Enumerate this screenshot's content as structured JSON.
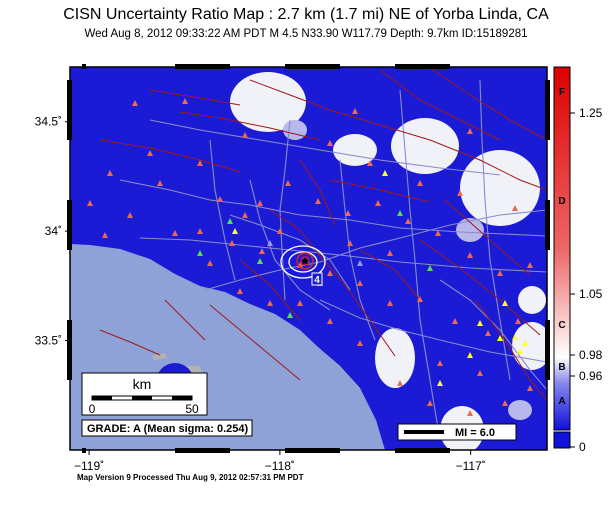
{
  "header": {
    "title": "CISN Uncertainty Ratio Map : 2.7 km (1.7 mi) NE of Yorba Linda, CA",
    "subtitle": "Wed Aug  8, 2012 09:33:22 AM PDT    M 4.5    N33.90 W117.79    Depth: 9.7km    ID:15189281"
  },
  "footer": {
    "text": "Map Version 9 Processed Thu Aug  9, 2012 02:57:31 PM PDT"
  },
  "map": {
    "extent": {
      "lon_min": -119.1,
      "lon_max": -116.6,
      "lat_min": 33.0,
      "lat_max": 34.75
    },
    "lon_ticks": [
      {
        "lon": -119,
        "label": "−119˚"
      },
      {
        "lon": -118,
        "label": "−118˚"
      },
      {
        "lon": -117,
        "label": "−117˚"
      }
    ],
    "lat_ticks": [
      {
        "lat": 34.5,
        "label": "34.5˚"
      },
      {
        "lat": 34.0,
        "label": "34˚"
      },
      {
        "lat": 33.5,
        "label": "33.5˚"
      }
    ],
    "epicenter": {
      "lat": 33.9,
      "lon": -117.79
    },
    "contour_label": "4",
    "scale_bar": {
      "unit": "km",
      "labels": [
        "0",
        "50"
      ]
    },
    "grade_box": "GRADE: A (Mean sigma: 0.254)",
    "mi_legend": "MI = 6.0",
    "colors": {
      "ocean": "#8ea2d8",
      "land": "#b3b3b3",
      "uncertainty_blue": "#1b1bd6",
      "fault": "#a01818",
      "road": "#8a8acc",
      "station": "#e96a55"
    }
  },
  "colorbar": {
    "letters": [
      "F",
      "D",
      "C",
      "B",
      "A"
    ],
    "tick_labels": [
      "1.25",
      "1.05",
      "0.98",
      "0.96",
      "0"
    ]
  }
}
